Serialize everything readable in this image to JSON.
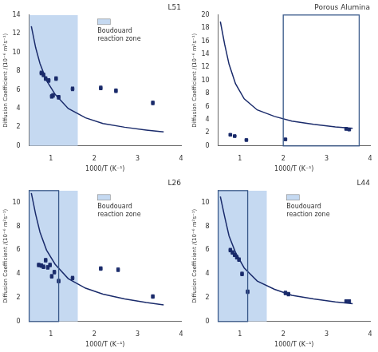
{
  "chart_data": [
    {
      "type": "line",
      "title": "L51",
      "xlabel": "1000/T (K⁻¹)",
      "ylabel": "Diffusion Coefficient /(10⁻⁶ m²s⁻¹)",
      "xlim": [
        0.5,
        4.0
      ],
      "xticks": [
        1,
        2,
        3,
        4
      ],
      "ylim": [
        0,
        14
      ],
      "yticks": [
        0,
        2,
        4,
        6,
        8,
        10,
        12,
        14
      ],
      "grid": false,
      "legend": "upper center",
      "shaded_region": {
        "name": "Boudouard \nreaction zone",
        "x": [
          0.5,
          1.62
        ],
        "color": "#c5d9f1"
      },
      "series": [
        {
          "type": "line",
          "color": "#1a2b6b",
          "x": [
            0.55,
            0.65,
            0.75,
            0.9,
            1.1,
            1.4,
            1.8,
            2.2,
            2.7,
            3.2,
            3.6
          ],
          "values": [
            12.8,
            10.5,
            8.8,
            7.0,
            5.5,
            4.0,
            3.0,
            2.4,
            2.0,
            1.7,
            1.5
          ]
        },
        {
          "type": "scatter",
          "color": "#1a2b6b",
          "marker": "square",
          "x": [
            0.78,
            0.83,
            0.88,
            0.95,
            1.02,
            1.05,
            1.12,
            1.18,
            1.5,
            2.15,
            2.5,
            3.35
          ],
          "values": [
            7.8,
            7.6,
            7.2,
            7.0,
            5.3,
            5.4,
            7.2,
            5.2,
            6.1,
            6.2,
            5.9,
            4.6
          ],
          "errors": [
            0.2,
            0.2,
            0.2,
            0.2,
            0.2,
            0.2,
            0.2,
            0.2,
            0.2,
            0.2,
            0.2,
            0.2
          ]
        }
      ]
    },
    {
      "type": "line",
      "title": "Porous Alumina",
      "xlabel": "1000/T (K⁻¹)",
      "ylabel": "Diffusion Coefficient /(10⁻⁶ m²s⁻¹)",
      "xlim": [
        0.5,
        4.0
      ],
      "xticks": [
        1,
        2,
        3,
        4
      ],
      "ylim": [
        0,
        20
      ],
      "yticks": [
        0,
        2,
        4,
        6,
        8,
        10,
        12,
        14,
        16,
        18,
        20
      ],
      "grid": false,
      "outlined_region": {
        "x": [
          2.0,
          3.75
        ],
        "color": "#3a5a8a"
      },
      "series": [
        {
          "type": "line",
          "color": "#1a2b6b",
          "x": [
            0.55,
            0.65,
            0.75,
            0.9,
            1.1,
            1.4,
            1.8,
            2.2,
            2.7,
            3.2,
            3.6
          ],
          "values": [
            19.0,
            15.5,
            12.5,
            9.5,
            7.2,
            5.5,
            4.5,
            3.8,
            3.3,
            2.9,
            2.7
          ]
        },
        {
          "type": "scatter",
          "color": "#1a2b6b",
          "marker": "square",
          "x": [
            0.78,
            0.88,
            1.15,
            2.05,
            3.45,
            3.52
          ],
          "values": [
            1.7,
            1.5,
            0.9,
            1.0,
            2.6,
            2.5
          ],
          "errors": [
            0.12,
            0.12,
            0.12,
            0.12,
            0.15,
            0.15
          ]
        }
      ]
    },
    {
      "type": "line",
      "title": "L26",
      "xlabel": "1000/T (K⁻¹)",
      "ylabel": "Diffusion Coefficient /(10⁻⁶ m²s⁻¹)",
      "xlim": [
        0.5,
        4.0
      ],
      "xticks": [
        1,
        2,
        3,
        4
      ],
      "ylim": [
        0,
        11
      ],
      "yticks": [
        0,
        2,
        4,
        6,
        8,
        10
      ],
      "grid": false,
      "legend": "upper center",
      "shaded_region": {
        "name": "Boudouard \nreaction zone",
        "x": [
          0.5,
          1.62
        ],
        "color": "#c5d9f1"
      },
      "outlined_region": {
        "x": [
          0.5,
          1.18
        ],
        "color": "#3a5a8a"
      },
      "series": [
        {
          "type": "line",
          "color": "#1a2b6b",
          "x": [
            0.55,
            0.65,
            0.75,
            0.9,
            1.1,
            1.4,
            1.8,
            2.2,
            2.7,
            3.2,
            3.6
          ],
          "values": [
            10.8,
            9.0,
            7.5,
            6.0,
            4.8,
            3.6,
            2.8,
            2.3,
            1.9,
            1.6,
            1.4
          ]
        },
        {
          "type": "scatter",
          "color": "#1a2b6b",
          "marker": "square",
          "x": [
            0.72,
            0.78,
            0.83,
            0.88,
            0.93,
            0.98,
            1.02,
            1.08,
            1.18,
            1.5,
            2.15,
            2.55,
            3.35
          ],
          "values": [
            4.75,
            4.7,
            4.6,
            5.15,
            4.55,
            4.75,
            3.8,
            4.15,
            3.4,
            3.65,
            4.45,
            4.35,
            2.1
          ],
          "errors": [
            0.15,
            0.15,
            0.15,
            0.15,
            0.15,
            0.15,
            0.15,
            0.15,
            0.15,
            0.15,
            0.15,
            0.15,
            0.15
          ]
        }
      ]
    },
    {
      "type": "line",
      "title": "L44",
      "xlabel": "1000/T (K⁻¹)",
      "ylabel": "Diffusion Coefficient /(10⁻⁶ m²s⁻¹)",
      "xlim": [
        0.5,
        4.0
      ],
      "xticks": [
        1,
        2,
        3,
        4
      ],
      "ylim": [
        0,
        11
      ],
      "yticks": [
        0,
        2,
        4,
        6,
        8,
        10
      ],
      "grid": false,
      "legend": "upper center",
      "shaded_region": {
        "name": "Boudouard \nreaction zone",
        "x": [
          0.5,
          1.62
        ],
        "color": "#c5d9f1"
      },
      "outlined_region": {
        "x": [
          0.5,
          1.18
        ],
        "color": "#3a5a8a"
      },
      "series": [
        {
          "type": "line",
          "color": "#1a2b6b",
          "x": [
            0.55,
            0.65,
            0.75,
            0.9,
            1.1,
            1.4,
            1.8,
            2.2,
            2.7,
            3.2,
            3.6
          ],
          "values": [
            10.5,
            8.8,
            7.2,
            5.8,
            4.5,
            3.4,
            2.7,
            2.2,
            1.9,
            1.65,
            1.5
          ]
        },
        {
          "type": "scatter",
          "color": "#1a2b6b",
          "marker": "square",
          "x": [
            0.78,
            0.83,
            0.88,
            0.93,
            0.98,
            1.05,
            1.18,
            2.05,
            2.12,
            3.45,
            3.52
          ],
          "values": [
            6.0,
            5.8,
            5.6,
            5.4,
            5.2,
            4.0,
            2.5,
            2.4,
            2.3,
            1.7,
            1.7
          ],
          "errors": [
            0.15,
            0.15,
            0.15,
            0.15,
            0.15,
            0.15,
            0.15,
            0.15,
            0.15,
            0.12,
            0.12
          ]
        }
      ]
    }
  ]
}
